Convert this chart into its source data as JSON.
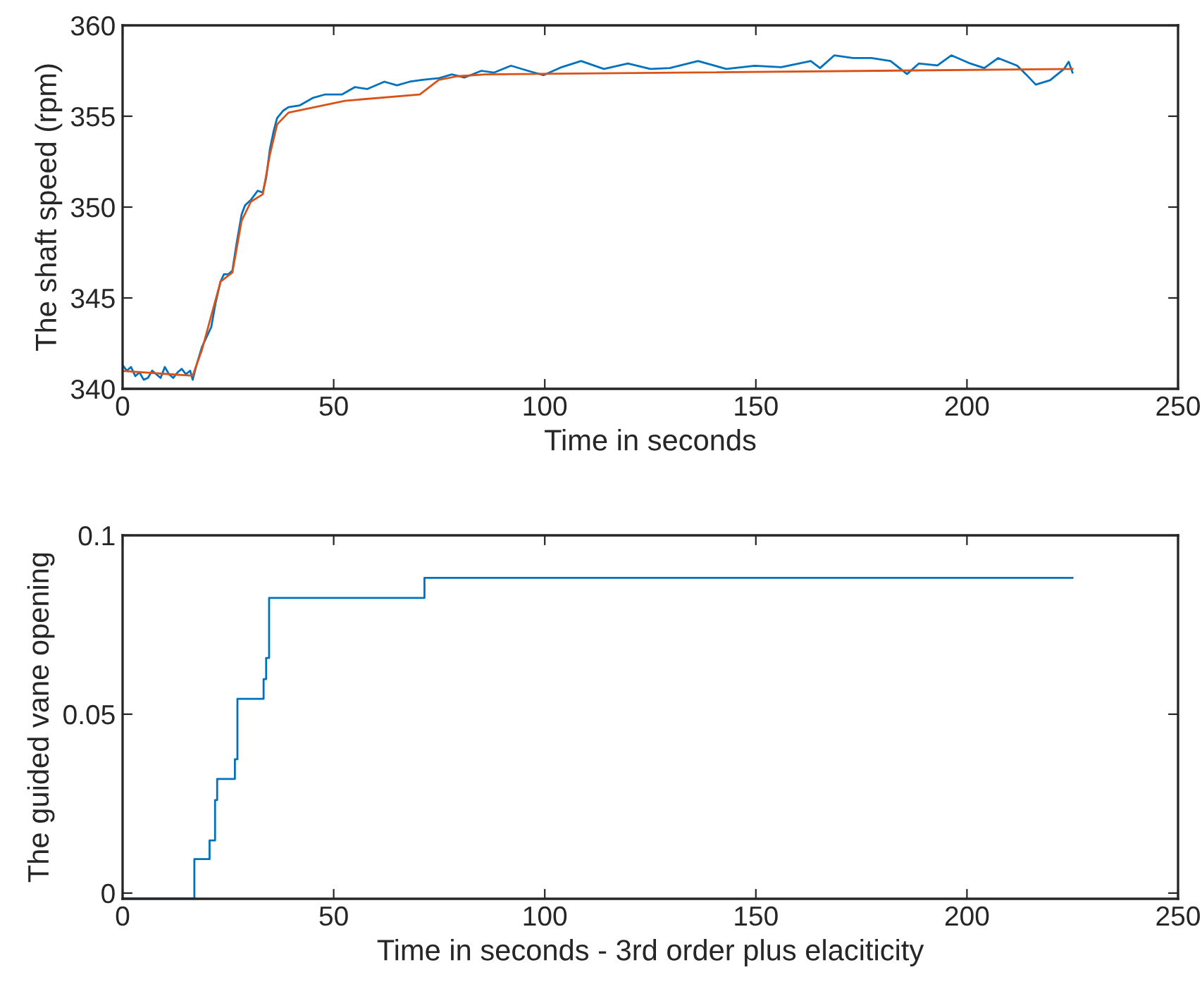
{
  "chart_data": [
    {
      "type": "line",
      "xlabel": "Time in seconds",
      "ylabel": "The shaft speed (rpm)",
      "xlim": [
        0,
        250
      ],
      "xticks": [
        0,
        50,
        100,
        150,
        200,
        250
      ],
      "ylim": [
        340,
        360
      ],
      "yticks": [
        340,
        345,
        350,
        355,
        360
      ],
      "series": [
        {
          "color": "#0072bd",
          "x": [
            0,
            1,
            2,
            3,
            4,
            5,
            6,
            7,
            8,
            9,
            10,
            11,
            12,
            13,
            14,
            15,
            16,
            16.6,
            17.5,
            18.8,
            20,
            21,
            22,
            23.2,
            24,
            25,
            26,
            27,
            28.2,
            29,
            30.4,
            32,
            33.2,
            34,
            34.9,
            35.8,
            36.6,
            38,
            39.3,
            42,
            45,
            48,
            52,
            55,
            58,
            62,
            65,
            68,
            71,
            75,
            78,
            81,
            85,
            88,
            92,
            96,
            99.7,
            104,
            108.6,
            114,
            119.7,
            125,
            129.6,
            136.3,
            143,
            149.7,
            156,
            163,
            165.2,
            168.6,
            173,
            177.4,
            181.9,
            185.8,
            188.6,
            193,
            196.3,
            200.8,
            204.1,
            207.4,
            211.9,
            214,
            216.3,
            219.7,
            223,
            224.1,
            225
          ],
          "values": [
            341.3,
            341.0,
            341.2,
            340.7,
            340.9,
            340.5,
            340.6,
            341.0,
            340.8,
            340.6,
            341.2,
            340.8,
            340.6,
            340.9,
            341.1,
            340.8,
            341.0,
            340.5,
            341.3,
            342.3,
            342.9,
            343.4,
            344.7,
            345.9,
            346.3,
            346.3,
            346.5,
            348.0,
            349.6,
            350.1,
            350.4,
            350.9,
            350.8,
            351.6,
            353.2,
            354.2,
            354.9,
            355.3,
            355.5,
            355.6,
            356.0,
            356.2,
            356.2,
            356.6,
            356.5,
            356.9,
            356.7,
            356.9,
            357.0,
            357.1,
            357.3,
            357.13,
            357.5,
            357.4,
            357.78,
            357.5,
            357.26,
            357.7,
            358.04,
            357.6,
            357.9,
            357.6,
            357.65,
            358.04,
            357.6,
            357.78,
            357.7,
            358.04,
            357.65,
            358.35,
            358.2,
            358.2,
            358.04,
            357.32,
            357.9,
            357.8,
            358.35,
            357.9,
            357.65,
            358.2,
            357.78,
            357.3,
            356.74,
            356.98,
            357.6,
            358.0,
            357.4
          ]
        },
        {
          "color": "#d95319",
          "x": [
            0,
            16.6,
            18.8,
            23.2,
            26,
            28.2,
            30.4,
            33.2,
            34.9,
            36.6,
            39.3,
            52.7,
            70.4,
            74.9,
            79.3,
            86,
            225
          ],
          "values": [
            340.98,
            340.72,
            342.15,
            345.9,
            346.4,
            349.25,
            350.3,
            350.7,
            352.9,
            354.55,
            355.2,
            355.85,
            356.2,
            357.0,
            357.2,
            357.3,
            357.6
          ]
        }
      ]
    },
    {
      "type": "step",
      "xlabel": "Time in seconds - 3rd order plus elaciticity",
      "ylabel": "The guided vane opening",
      "xlim": [
        0,
        250
      ],
      "xticks": [
        0,
        50,
        100,
        150,
        200,
        250
      ],
      "ylim": [
        -0.0016,
        0.1
      ],
      "yticks": [
        0,
        0.05,
        0.1
      ],
      "series": [
        {
          "color": "#0072bd",
          "x": [
            0,
            17.0,
            20.6,
            21.9,
            22.4,
            26.6,
            27.2,
            33.4,
            34.0,
            34.7,
            71.5,
            225
          ],
          "values": [
            -0.0015,
            0.0095,
            0.0147,
            0.026,
            0.0319,
            0.0374,
            0.0543,
            0.0598,
            0.0657,
            0.0825,
            0.0881,
            0.0881
          ]
        }
      ]
    }
  ]
}
